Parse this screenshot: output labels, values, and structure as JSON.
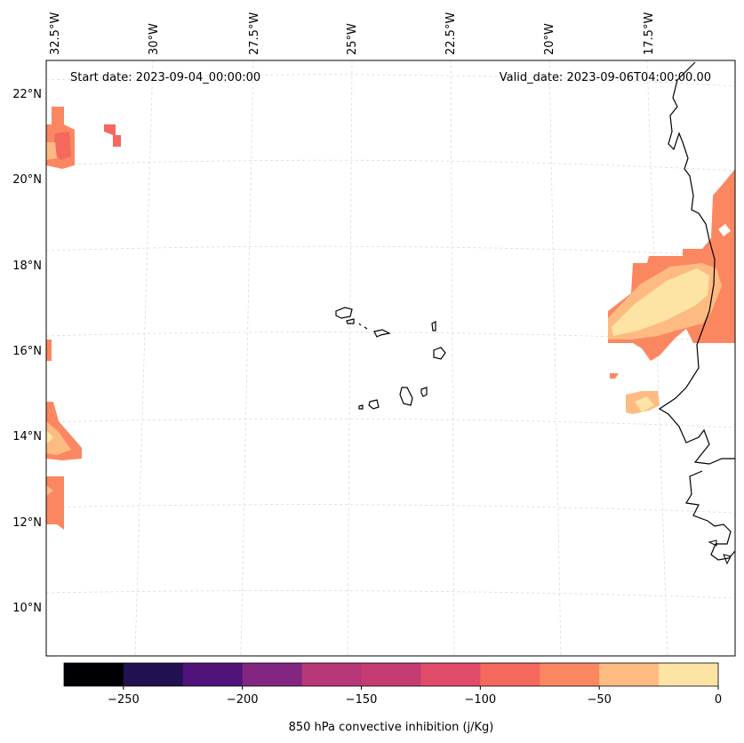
{
  "map": {
    "start_date": "Start date: 2023-09-04_00:00:00",
    "valid_date": "Valid_date: 2023-09-06T04:00:00.00",
    "lon_labels": [
      "32.5°W",
      "30°W",
      "27.5°W",
      "25°W",
      "22.5°W",
      "20°W",
      "17.5°W"
    ],
    "lat_labels": [
      "22°N",
      "20°N",
      "18°N",
      "16°N",
      "14°N",
      "12°N",
      "10°N"
    ],
    "features": [
      "Cape Verde islands",
      "West African coastline"
    ],
    "colors": {
      "c_m275": "#000004",
      "c_m250": "#221150",
      "c_m225": "#51127c",
      "c_m200": "#822681",
      "c_m175": "#b73779",
      "c_m150": "#e75263",
      "c_m100": "#f5685d",
      "c_m75": "#fb8761",
      "c_m50": "#febb81",
      "c_m25": "#fde4a5",
      "coast": "#000000",
      "grid": "#cccccc"
    }
  },
  "colorbar": {
    "label": "850 hPa convective inhibition (j/Kg)",
    "bins": [
      {
        "from": -275,
        "to": -250,
        "color": "#000004"
      },
      {
        "from": -250,
        "to": -225,
        "color": "#221150"
      },
      {
        "from": -225,
        "to": -200,
        "color": "#51127c"
      },
      {
        "from": -200,
        "to": -175,
        "color": "#822681"
      },
      {
        "from": -175,
        "to": -150,
        "color": "#b73779"
      },
      {
        "from": -150,
        "to": -125,
        "color": "#c43c72"
      },
      {
        "from": -125,
        "to": -100,
        "color": "#e04c69"
      },
      {
        "from": -100,
        "to": -75,
        "color": "#f5685d"
      },
      {
        "from": -75,
        "to": -50,
        "color": "#fb8761"
      },
      {
        "from": -50,
        "to": -25,
        "color": "#febb81"
      },
      {
        "from": -25,
        "to": 0,
        "color": "#fde4a5"
      }
    ],
    "ticks": [
      "−250",
      "−200",
      "−150",
      "−100",
      "−50",
      "0"
    ]
  }
}
